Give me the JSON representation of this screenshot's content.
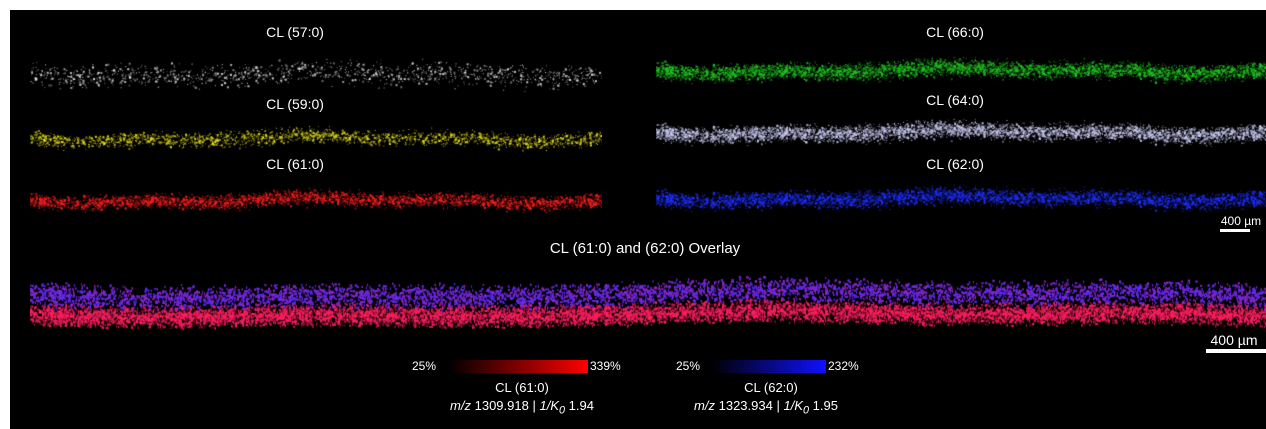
{
  "panels": [
    {
      "id": "cl570",
      "label": "CL (57:0)",
      "color": "#e0e0e0"
    },
    {
      "id": "cl590",
      "label": "CL (59:0)",
      "color": "#e6e01c"
    },
    {
      "id": "cl610",
      "label": "CL (61:0)",
      "color": "#ff2020"
    },
    {
      "id": "cl660",
      "label": "CL (66:0)",
      "color": "#22c422"
    },
    {
      "id": "cl640",
      "label": "CL (64:0)",
      "color": "#c8c8f0"
    },
    {
      "id": "cl620",
      "label": "CL (62:0)",
      "color": "#2030ff"
    }
  ],
  "overlay": {
    "title": "CL (61:0) and (62:0) Overlay",
    "top_color": "#4a2cff",
    "bottom_color": "#ff2060"
  },
  "scalebars": {
    "small": "400 µm",
    "large": "400 µm"
  },
  "legends": [
    {
      "min_label": "25%",
      "max_label": "339%",
      "gradient_from": "#000000",
      "gradient_to": "#ff0000",
      "name": "CL (61:0)",
      "mz_prefix": "m/z",
      "mz_value": "1309.918",
      "separator": "|",
      "k0_prefix": "1/K",
      "k0_sub": "0",
      "k0_value": "1.94"
    },
    {
      "min_label": "25%",
      "max_label": "232%",
      "gradient_from": "#000000",
      "gradient_to": "#1010ff",
      "name": "CL (62:0)",
      "mz_prefix": "m/z",
      "mz_value": "1323.934",
      "separator": "|",
      "k0_prefix": "1/K",
      "k0_sub": "0",
      "k0_value": "1.95"
    }
  ]
}
